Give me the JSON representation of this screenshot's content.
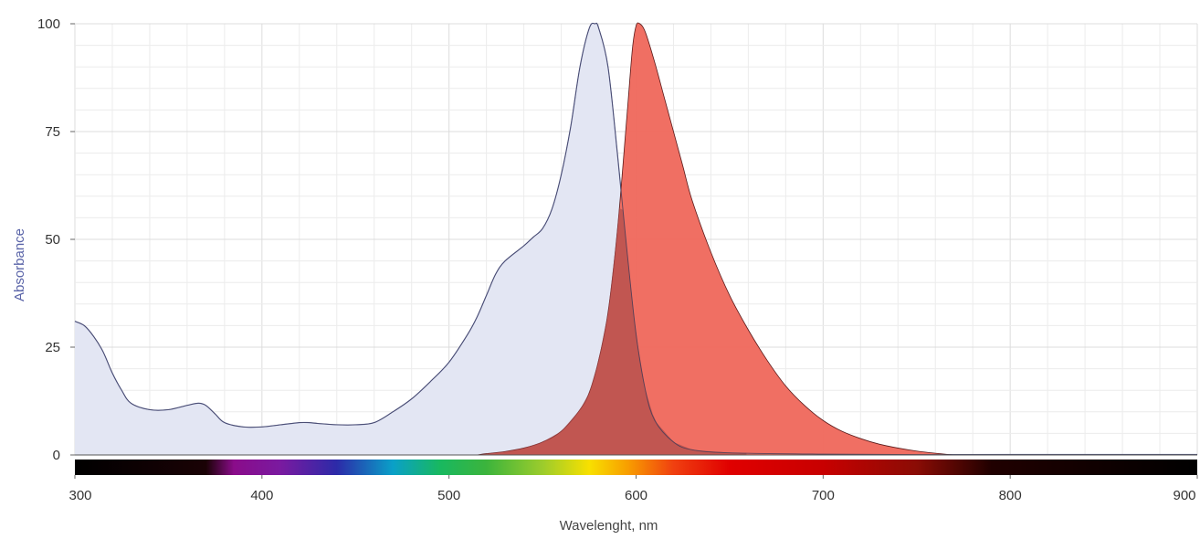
{
  "chart_data": {
    "type": "area",
    "title": "",
    "xlabel": "Wavelenght, nm",
    "ylabel": "Absorbance",
    "xlim": [
      300,
      900
    ],
    "ylim": [
      0,
      100
    ],
    "x_ticks": [
      300,
      400,
      500,
      600,
      700,
      800,
      900
    ],
    "y_ticks": [
      0,
      25,
      50,
      75,
      100
    ],
    "grid": true,
    "legend": "none",
    "series": [
      {
        "color": "#7b84b8",
        "fill": "#e3e6f3",
        "x": [
          300,
          305,
          310,
          315,
          320,
          325,
          330,
          340,
          350,
          360,
          366,
          370,
          375,
          380,
          390,
          400,
          410,
          420,
          425,
          430,
          440,
          450,
          460,
          470,
          480,
          490,
          500,
          510,
          515,
          520,
          525,
          530,
          540,
          545,
          550,
          555,
          560,
          565,
          570,
          575,
          578,
          580,
          585,
          590,
          595,
          600,
          605,
          610,
          620,
          630,
          650,
          700,
          750,
          800,
          900
        ],
        "y": [
          31,
          30,
          27.5,
          24,
          19,
          15,
          12,
          10.5,
          10.5,
          11.5,
          12,
          11.5,
          9.5,
          7.5,
          6.5,
          6.5,
          7,
          7.5,
          7.5,
          7.3,
          7,
          7,
          7.5,
          10,
          13,
          17,
          21.5,
          28,
          32,
          37,
          42,
          45,
          48.5,
          50.5,
          52.5,
          57,
          65,
          76,
          90,
          99,
          100,
          99,
          90,
          70,
          48,
          28,
          15,
          8,
          3,
          1.2,
          0.5,
          0.2,
          0.1,
          0.1,
          0.1
        ]
      },
      {
        "color": "#5a1a1a",
        "fill": "#f06a5e",
        "x": [
          515,
          520,
          530,
          540,
          550,
          560,
          570,
          575,
          580,
          585,
          590,
          595,
          598,
          600,
          602,
          605,
          610,
          615,
          620,
          625,
          630,
          640,
          650,
          660,
          670,
          680,
          690,
          700,
          710,
          720,
          730,
          740,
          750,
          760,
          770
        ],
        "y": [
          0,
          0.3,
          0.8,
          1.6,
          3,
          5.5,
          10.5,
          14.5,
          22,
          33,
          52,
          78,
          94,
          99.5,
          100,
          98,
          91,
          83,
          75,
          67,
          59,
          47,
          37,
          29,
          22,
          16,
          11.5,
          8,
          5.5,
          3.8,
          2.5,
          1.6,
          0.9,
          0.4,
          0
        ]
      }
    ],
    "spectrum_bar": {
      "stops": [
        {
          "nm": 300,
          "color": "#000000"
        },
        {
          "nm": 370,
          "color": "#1a0205"
        },
        {
          "nm": 385,
          "color": "#8a0c8a"
        },
        {
          "nm": 410,
          "color": "#7a1aa0"
        },
        {
          "nm": 440,
          "color": "#2c2aa8"
        },
        {
          "nm": 470,
          "color": "#0aa0c8"
        },
        {
          "nm": 495,
          "color": "#18b860"
        },
        {
          "nm": 520,
          "color": "#3cb43c"
        },
        {
          "nm": 550,
          "color": "#9ccc2c"
        },
        {
          "nm": 575,
          "color": "#f8e000"
        },
        {
          "nm": 595,
          "color": "#f8a000"
        },
        {
          "nm": 620,
          "color": "#f04010"
        },
        {
          "nm": 650,
          "color": "#e00000"
        },
        {
          "nm": 700,
          "color": "#c80000"
        },
        {
          "nm": 750,
          "color": "#8a0c05"
        },
        {
          "nm": 790,
          "color": "#200000"
        },
        {
          "nm": 900,
          "color": "#000000"
        }
      ]
    }
  }
}
